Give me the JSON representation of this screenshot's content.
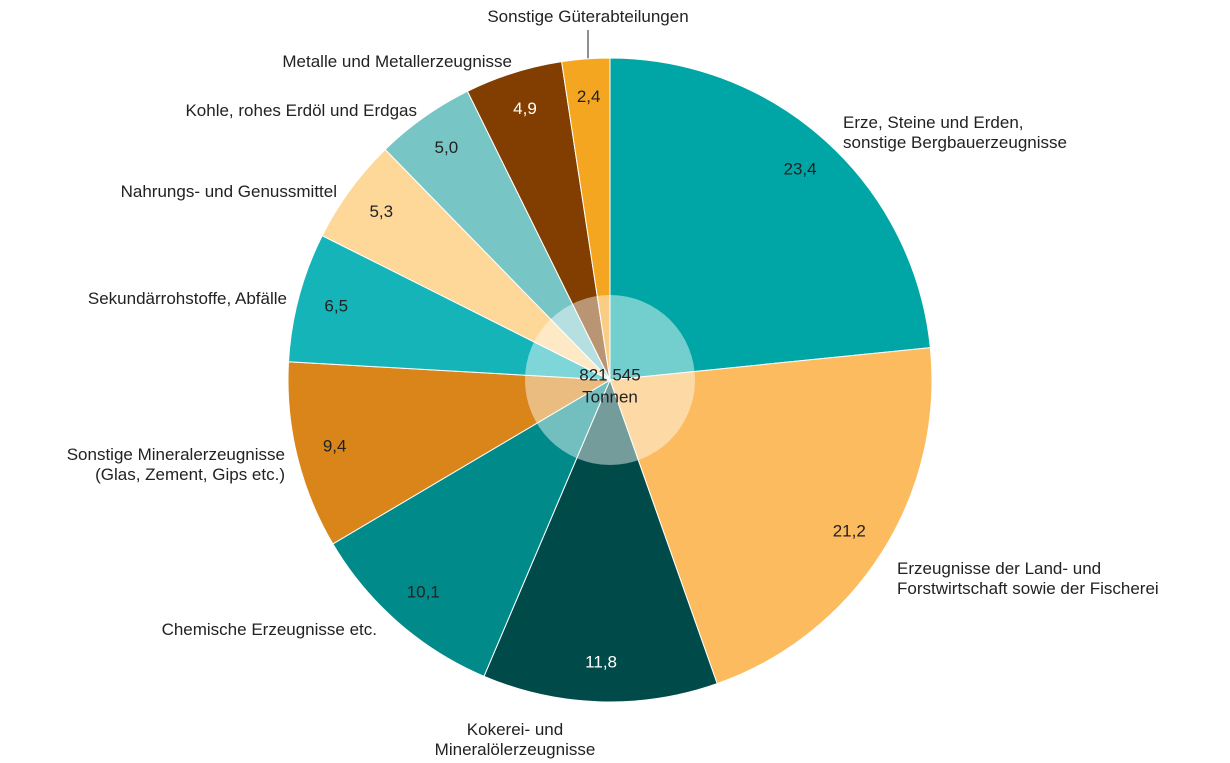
{
  "chart_data": {
    "type": "pie",
    "categories": [
      "Erze, Steine und Erden,\nsonstige Bergbauerzeugnisse",
      "Erzeugnisse der Land- und\nForstwirtschaft sowie der Fischerei",
      "Kokerei- und\nMineralölerzeugnisse",
      "Chemische Erzeugnisse etc.",
      "Sonstige Mineralerzeugnisse\n(Glas, Zement, Gips etc.)",
      "Sekundärrohstoffe, Abfälle",
      "Nahrungs- und Genussmittel",
      "Kohle, rohes Erdöl und Erdgas",
      "Metalle und Metallerzeugnisse",
      "Sonstige Güterabteilungen"
    ],
    "values": [
      23.4,
      21.2,
      11.8,
      10.1,
      9.4,
      6.5,
      5.3,
      5.0,
      4.9,
      2.4
    ],
    "value_labels": [
      "23,4",
      "21,2",
      "11,8",
      "10,1",
      "9,4",
      "6,5",
      "5,3",
      "5,0",
      "4,9",
      "2,4"
    ],
    "colors": [
      "#00a6a6",
      "#fbbb5e",
      "#004b49",
      "#008a8a",
      "#da8519",
      "#14b4b9",
      "#fdd898",
      "#78c5c6",
      "#823e00",
      "#f4a620"
    ],
    "value_label_colors": [
      "#222222",
      "#222222",
      "#ffffff",
      "#222222",
      "#222222",
      "#222222",
      "#222222",
      "#222222",
      "#ffffff",
      "#222222"
    ],
    "total_label": "821 545",
    "total_unit": "Tonnen"
  }
}
